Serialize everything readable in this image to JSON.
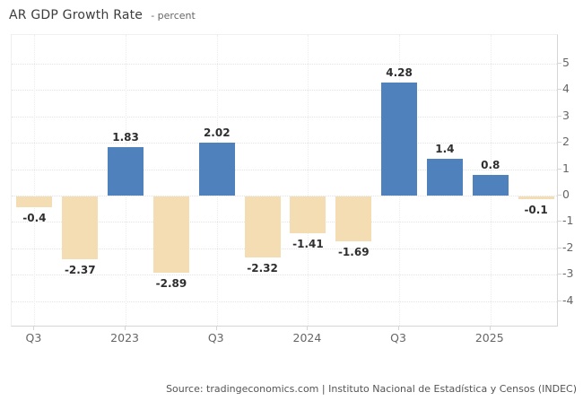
{
  "title": {
    "main": "AR GDP Growth Rate",
    "unit_label": "- percent"
  },
  "source": "Source: tradingeconomics.com | Instituto Nacional de Estadística y Censos (INDEC)",
  "colors": {
    "positive_bar": "#4f81bd",
    "negative_bar": "#f4ddb2",
    "grid_h": "#e3e3e3",
    "grid_v": "#ececec",
    "axis_line": "#d5d5d5",
    "value_label_text": "#2e2e2e",
    "tick_text": "#666666"
  },
  "chart_data": {
    "type": "bar",
    "title": "AR GDP Growth Rate",
    "ylabel": "percent",
    "values": [
      -0.4,
      -2.37,
      1.83,
      -2.89,
      2.02,
      -2.32,
      -1.41,
      -1.69,
      4.28,
      1.4,
      0.8,
      -0.1
    ],
    "bar_value_labels": [
      "-0.4",
      "-2.37",
      "1.83",
      "-2.89",
      "2.02",
      "-2.32",
      "-1.41",
      "-1.69",
      "4.28",
      "1.4",
      "0.8",
      "-0.1"
    ],
    "x_ticks": [
      {
        "slot": 0,
        "label": "Q3"
      },
      {
        "slot": 2,
        "label": "2023"
      },
      {
        "slot": 4,
        "label": "Q3"
      },
      {
        "slot": 6,
        "label": "2024"
      },
      {
        "slot": 8,
        "label": "Q3"
      },
      {
        "slot": 10,
        "label": "2025"
      }
    ],
    "y_ticks": [
      5,
      4,
      3,
      2,
      1,
      0,
      -1,
      -2,
      -3,
      -4
    ],
    "ylim": [
      -5.0,
      6.09
    ],
    "grid": true,
    "legend": false,
    "value_labels_on": true,
    "color_rule": "positive bars blue, negative bars wheat"
  }
}
